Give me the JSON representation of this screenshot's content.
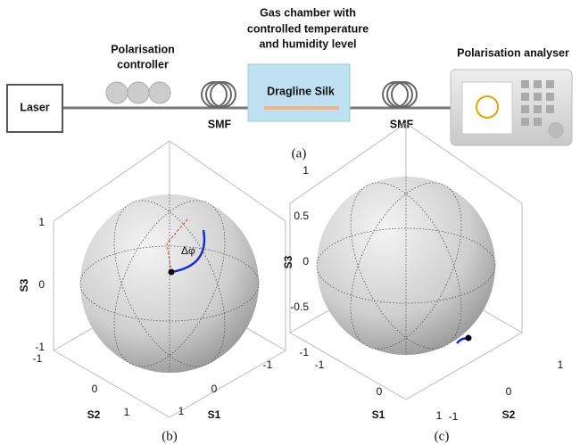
{
  "setup": {
    "laser": "Laser",
    "controller": [
      "Polarisation",
      "controller"
    ],
    "smf_left": "SMF",
    "chamber_title": [
      "Gas chamber with",
      "controlled temperature",
      "and humidity level"
    ],
    "sample": "Dragline Silk",
    "smf_right": "SMF",
    "analyser": "Polarisation analyser",
    "caption": "(a)"
  },
  "panels": [
    {
      "caption": "(b)",
      "annotation": "Δφ",
      "vertical_axis": {
        "name": "S3",
        "ticks": [
          1,
          0,
          -1
        ]
      },
      "left_axis": {
        "name": "S2",
        "ticks": [
          -1,
          0,
          1
        ]
      },
      "right_axis": {
        "name": "S1",
        "ticks": [
          -1,
          0,
          1
        ]
      }
    },
    {
      "caption": "(c)",
      "vertical_axis": {
        "name": "S3",
        "ticks": [
          1,
          0.5,
          0,
          -0.5,
          -1
        ]
      },
      "left_axis": {
        "name": "S1",
        "ticks": [
          -1,
          0,
          1
        ]
      },
      "right_axis": {
        "name": "S2",
        "ticks": [
          1,
          0,
          -1
        ]
      }
    }
  ]
}
